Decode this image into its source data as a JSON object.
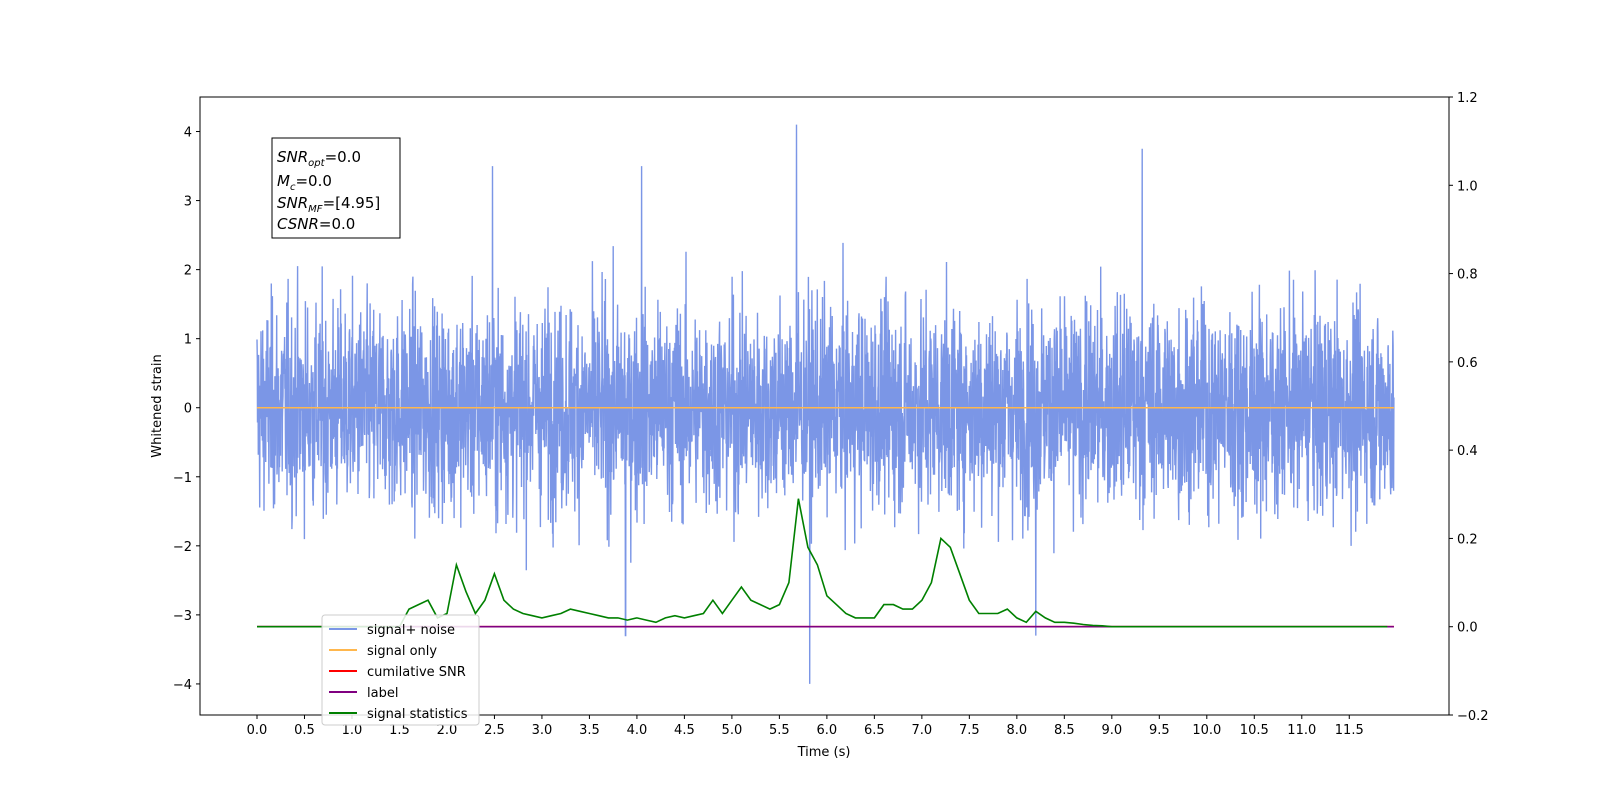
{
  "chart_data": {
    "type": "line",
    "xlabel": "Time (s)",
    "ylabel": "Whitened strain",
    "xlim": [
      -0.6,
      12.55
    ],
    "ylim": [
      -4.45,
      4.5
    ],
    "y2lim": [
      -0.2,
      1.2
    ],
    "x_ticks": [
      "0.0",
      "0.5",
      "1.0",
      "1.5",
      "2.0",
      "2.5",
      "3.0",
      "3.5",
      "4.0",
      "4.5",
      "5.0",
      "5.5",
      "6.0",
      "6.5",
      "7.0",
      "7.5",
      "8.0",
      "8.5",
      "9.0",
      "9.5",
      "10.0",
      "10.5",
      "11.0",
      "11.5"
    ],
    "y_ticks": [
      "4",
      "3",
      "2",
      "1",
      "0",
      "−1",
      "−2",
      "−3",
      "−4"
    ],
    "y2_ticks": [
      "1.2",
      "1.0",
      "0.8",
      "0.6",
      "0.4",
      "0.2",
      "0.0",
      "−0.2"
    ],
    "grid": false,
    "legend_position": "lower-left",
    "stats": {
      "snr_opt": "SNRopt=0.0",
      "mc": "Mc=0.0",
      "snr_mf": "SNRMF=[4.95]",
      "csnr": "CSNR=0.0"
    },
    "series": [
      {
        "name": "signal+ noise",
        "color": "#7b96e6",
        "axis": "left",
        "x_range": [
          0.0,
          11.97
        ],
        "values_sample": [
          0.3,
          -1.2,
          2.1,
          -0.8,
          1.5,
          -2.0,
          0.9,
          -1.7,
          2.4,
          -0.5
        ],
        "range": [
          -4.0,
          4.1
        ],
        "peaks": [
          {
            "x": 5.68,
            "y": 4.1
          },
          {
            "x": 5.82,
            "y": -4.0
          },
          {
            "x": 9.32,
            "y": 3.75
          },
          {
            "x": 4.05,
            "y": 3.5
          },
          {
            "x": 2.48,
            "y": 3.5
          },
          {
            "x": 3.88,
            "y": -3.3
          },
          {
            "x": 8.2,
            "y": -3.3
          }
        ]
      },
      {
        "name": "signal only",
        "color": "#ffb74d",
        "axis": "left",
        "x": [
          0.0,
          11.97
        ],
        "values": [
          0.0,
          0.0
        ]
      },
      {
        "name": "cumilative SNR",
        "color": "#ff0000",
        "axis": "right",
        "x": [
          0.0,
          11.97
        ],
        "values": [
          0.0,
          0.0
        ]
      },
      {
        "name": "label",
        "color": "#800080",
        "axis": "right",
        "x": [
          0.0,
          11.97
        ],
        "values": [
          0.0,
          0.0
        ]
      },
      {
        "name": "signal statistics",
        "color": "#008000",
        "axis": "right",
        "x": [
          0.0,
          1.5,
          1.6,
          1.7,
          1.8,
          1.9,
          2.0,
          2.1,
          2.2,
          2.3,
          2.4,
          2.5,
          2.6,
          2.7,
          2.8,
          2.9,
          3.0,
          3.1,
          3.2,
          3.3,
          3.4,
          3.5,
          3.6,
          3.7,
          3.8,
          3.9,
          4.0,
          4.1,
          4.2,
          4.3,
          4.4,
          4.5,
          4.6,
          4.7,
          4.8,
          4.9,
          5.0,
          5.1,
          5.2,
          5.3,
          5.4,
          5.5,
          5.6,
          5.7,
          5.8,
          5.9,
          6.0,
          6.1,
          6.2,
          6.3,
          6.4,
          6.5,
          6.6,
          6.7,
          6.8,
          6.9,
          7.0,
          7.1,
          7.2,
          7.3,
          7.4,
          7.5,
          7.6,
          7.7,
          7.8,
          7.9,
          8.0,
          8.1,
          8.2,
          8.3,
          8.4,
          8.5,
          8.6,
          8.7,
          8.8,
          8.9,
          9.0,
          10.0,
          11.0,
          11.9
        ],
        "values": [
          0.0,
          0.0,
          0.04,
          0.05,
          0.06,
          0.02,
          0.03,
          0.14,
          0.08,
          0.03,
          0.06,
          0.12,
          0.06,
          0.04,
          0.03,
          0.025,
          0.02,
          0.025,
          0.03,
          0.04,
          0.035,
          0.03,
          0.025,
          0.02,
          0.02,
          0.015,
          0.02,
          0.015,
          0.01,
          0.02,
          0.025,
          0.02,
          0.025,
          0.03,
          0.06,
          0.03,
          0.06,
          0.09,
          0.06,
          0.05,
          0.04,
          0.05,
          0.1,
          0.29,
          0.18,
          0.14,
          0.07,
          0.05,
          0.03,
          0.02,
          0.02,
          0.02,
          0.05,
          0.05,
          0.04,
          0.04,
          0.06,
          0.1,
          0.2,
          0.18,
          0.12,
          0.06,
          0.03,
          0.03,
          0.03,
          0.04,
          0.02,
          0.01,
          0.035,
          0.02,
          0.01,
          0.01,
          0.008,
          0.005,
          0.003,
          0.002,
          0.0,
          0.0,
          0.0,
          0.0
        ]
      }
    ]
  }
}
